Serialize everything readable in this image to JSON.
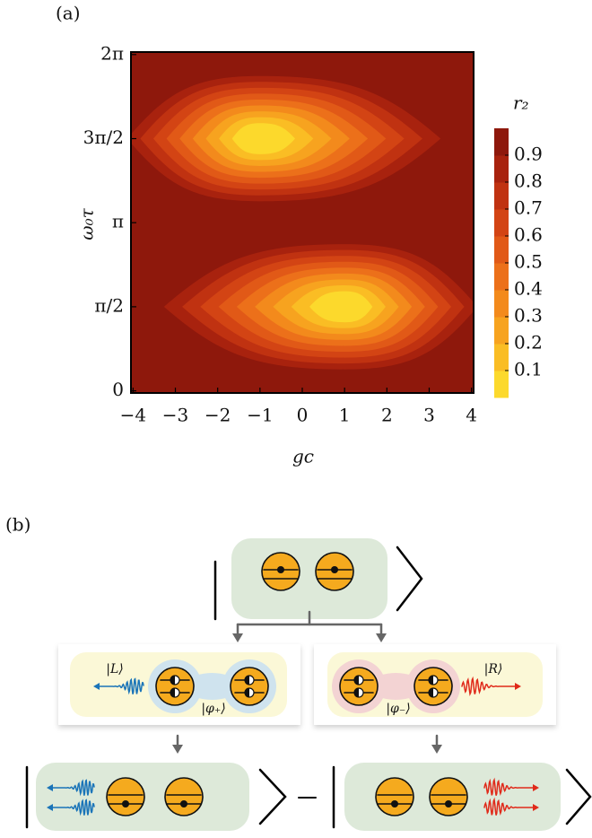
{
  "chart_data": {
    "type": "contour",
    "panel_label": "(a)",
    "x_label": "gc",
    "y_label": "ω₀τ",
    "colorbar_label": "r₂",
    "xlim": [
      -4.05,
      4.05
    ],
    "xticks": [
      {
        "value": -4,
        "label": "−4"
      },
      {
        "value": -3,
        "label": "−3"
      },
      {
        "value": -2,
        "label": "−2"
      },
      {
        "value": -1,
        "label": "−1"
      },
      0,
      1,
      2,
      3,
      4
    ],
    "ylim": [
      -0.04,
      6.33
    ],
    "yticks": [
      0,
      {
        "value": 1.571,
        "label": "π/2"
      },
      {
        "value": 3.142,
        "label": "π"
      },
      {
        "value": 4.712,
        "label": "3π/2"
      },
      {
        "value": 6.283,
        "label": "2π"
      }
    ],
    "clim": [
      0,
      1
    ],
    "cticks": [
      0.1,
      0.2,
      0.3,
      0.4,
      0.5,
      0.6,
      0.7,
      0.8,
      0.9
    ],
    "colors": [
      "#fcd92c",
      "#fabd24",
      "#f7a31f",
      "#f38a1c",
      "#ec701a",
      "#e15917",
      "#d34414",
      "#c03211",
      "#a8220e",
      "#8e180c"
    ],
    "minima": [
      {
        "x": -1,
        "y": 4.712
      },
      {
        "x": 1,
        "y": 1.571
      }
    ]
  },
  "panel_b": {
    "label": "(b)",
    "left_state": "|L⟩",
    "left_pair": "|φ₊⟩",
    "right_state": "|R⟩",
    "right_pair": "|φ₋⟩"
  }
}
